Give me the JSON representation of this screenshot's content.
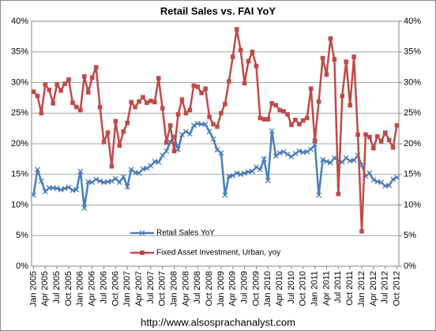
{
  "chart_data": {
    "type": "line",
    "title": "Retail Sales vs. FAI YoY",
    "source": "http://www.alsosprachanalyst.com",
    "categories": [
      "Jan 2005",
      null,
      null,
      "Apr 2005",
      null,
      null,
      "Jul 2005",
      null,
      null,
      "Oct 2005",
      null,
      null,
      "Jan 2006",
      null,
      null,
      "Apr 2006",
      null,
      null,
      "Jul 2006",
      null,
      null,
      "Oct 2006",
      null,
      null,
      "Jan 2007",
      null,
      null,
      "Apr 2007",
      null,
      null,
      "Jul 2007",
      null,
      null,
      "Oct 2007",
      null,
      null,
      "Jan 2008",
      null,
      null,
      "Apr 2008",
      null,
      null,
      "Jul 2008",
      null,
      null,
      "Oct 2008",
      null,
      null,
      "Jan 2009",
      null,
      null,
      "Apr 2009",
      null,
      null,
      "Jul 2009",
      null,
      null,
      "Oct 2009",
      null,
      null,
      "Jan 2010",
      null,
      null,
      "Apr 2010",
      null,
      null,
      "Jul 2010",
      null,
      null,
      "Oct 2010",
      null,
      null,
      "Jan 2011",
      null,
      null,
      "Apr 2011",
      null,
      null,
      "Jul 2011",
      null,
      null,
      "Oct 2011",
      null,
      null,
      "Jan 2012",
      null,
      null,
      "Apr 2012",
      null,
      null,
      "Jul 2012",
      null,
      null,
      "Oct 2012"
    ],
    "series": [
      {
        "name": "Retail Sales YoY",
        "color": "#4a7ebb",
        "marker": "x",
        "values": [
          11.6,
          15.8,
          13.9,
          12.2,
          12.8,
          12.8,
          12.7,
          12.5,
          12.7,
          12.9,
          12.4,
          12.5,
          15.5,
          9.5,
          13.8,
          13.7,
          14.2,
          13.9,
          13.7,
          13.8,
          13.9,
          14.3,
          13.7,
          14.6,
          13.0,
          15.8,
          15.3,
          15.2,
          15.9,
          16.0,
          16.4,
          17.1,
          17.0,
          18.1,
          18.8,
          20.3,
          21.2,
          19.1,
          21.5,
          22.0,
          21.6,
          23.0,
          23.3,
          23.2,
          23.2,
          22.0,
          20.8,
          19.0,
          18.5,
          11.6,
          14.7,
          14.8,
          15.2,
          15.0,
          15.2,
          15.4,
          15.5,
          16.2,
          15.8,
          17.5,
          14.0,
          22.1,
          18.0,
          18.5,
          18.7,
          18.3,
          17.9,
          18.4,
          18.8,
          18.6,
          18.7,
          19.1,
          19.9,
          11.6,
          17.4,
          17.1,
          16.9,
          17.7,
          17.2,
          17.0,
          17.7,
          17.2,
          17.3,
          18.1,
          16.5,
          14.7,
          15.2,
          14.1,
          13.8,
          13.7,
          13.1,
          13.2,
          14.2,
          14.5
        ]
      },
      {
        "name": "Fixed Asset Investment, Urban, yoy",
        "color": "#be4b48",
        "marker": "square",
        "axis": "y2",
        "values": [
          28.5,
          27.8,
          25.0,
          29.7,
          28.8,
          26.6,
          29.7,
          28.7,
          29.8,
          30.5,
          26.7,
          26.0,
          25.5,
          31.0,
          28.4,
          30.8,
          32.5,
          26.0,
          20.3,
          21.8,
          16.3,
          23.7,
          19.7,
          22.0,
          23.4,
          26.8,
          26.0,
          26.9,
          27.6,
          26.7,
          27.0,
          26.8,
          30.7,
          25.8,
          20.2,
          23.0,
          18.8,
          24.8,
          27.2,
          25.0,
          25.5,
          29.5,
          29.3,
          28.3,
          29.0,
          24.4,
          23.2,
          22.8,
          25.0,
          26.5,
          30.2,
          34.2,
          38.7,
          35.3,
          29.9,
          33.5,
          35.0,
          32.7,
          24.2,
          24.0,
          24.0,
          26.6,
          26.3,
          25.5,
          25.3,
          24.8,
          23.1,
          23.9,
          23.2,
          23.8,
          24.2,
          29.0,
          20.5,
          26.9,
          34.0,
          31.3,
          37.2,
          33.8,
          11.8,
          27.8,
          33.4,
          26.3,
          34.2,
          21.5,
          5.7,
          21.5,
          21.1,
          19.3,
          21.2,
          20.4,
          21.8,
          20.6,
          19.4,
          23.0
        ]
      }
    ],
    "ylim": [
      0,
      40
    ],
    "yticks": [
      {
        "value": 0,
        "label": "0%"
      },
      {
        "value": 5,
        "label": "5%"
      },
      {
        "value": 10,
        "label": "10%"
      },
      {
        "value": 15,
        "label": "15%"
      },
      {
        "value": 20,
        "label": "20%"
      },
      {
        "value": 25,
        "label": "25%"
      },
      {
        "value": 30,
        "label": "30%"
      },
      {
        "value": 35,
        "label": "35%"
      },
      {
        "value": 40,
        "label": "40%"
      }
    ],
    "y2lim": [
      0,
      40
    ],
    "y2ticks": [
      {
        "value": 0,
        "label": "0%"
      },
      {
        "value": 5,
        "label": "5%"
      },
      {
        "value": 10,
        "label": "10%"
      },
      {
        "value": 15,
        "label": "15%"
      },
      {
        "value": 20,
        "label": "20%"
      },
      {
        "value": 25,
        "label": "25%"
      },
      {
        "value": 30,
        "label": "30%"
      },
      {
        "value": 35,
        "label": "35%"
      },
      {
        "value": 40,
        "label": "40%"
      }
    ],
    "grid": true,
    "legend": "lower-left"
  }
}
